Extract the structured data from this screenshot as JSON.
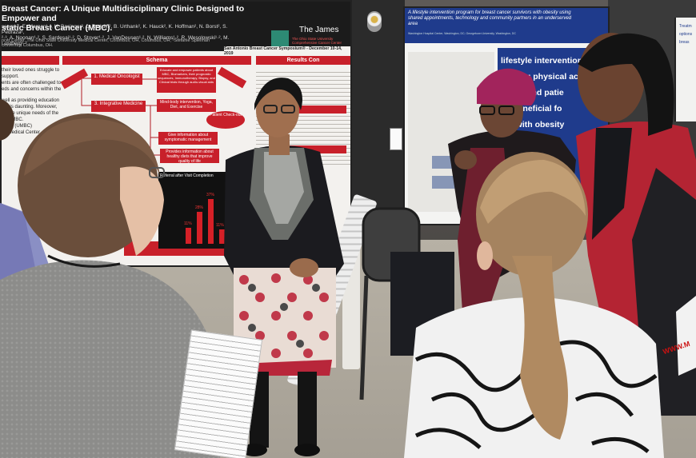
{
  "poster_left": {
    "title": "Breast Cancer: A Unique Multidisciplinary Clinic Designed to Empower and … static Breast Cancer (MBC).",
    "title_line1": "Breast Cancer: A Unique Multidisciplinary Clinic Designed to Empower and",
    "title_line2": "static Breast Cancer (MBC).",
    "authors_line1": "ssem¹·², E. Morgan¹·², H. Basinger², L. Radcliff², B. Urthank², K. Hauck², K. Hoffman², N. Borst², S. Pedraza²,",
    "authors_line2": "²·³, A. Noonan¹·², S. Sardesai¹·², D. Stover¹·², J. VanDeusen¹·², N. Williams¹·², R. Wesolowski¹·², M. Lustberg¹·²",
    "institution": "ncer Center, The Ohio State University Medical Center, Columbus, OH, Columbus, OH; ²Stefanie Spielman",
    "institution2": "University, Columbus, OH.",
    "brand": "The James",
    "brand_sub": "The Ohio State University Comprehensive Cancer Center",
    "symposium": "San Antonio Breast Cancer Symposium® - December 10-14, 2019",
    "sections": {
      "schema": "Schema",
      "results": "Results Con",
      "integrative": "3. Integrative Medicine",
      "oncologist": "1. Medical Oncologist",
      "referral_chart": "Referral after Visit Completion"
    },
    "boxes": {
      "educate": "Educate and empower patients about MBC, Biomarkers, their prognostic sequences, Immunotherapy, Biopsy, and Clinical trials through audio-visual aids",
      "mind_body": "Mind-body intervention, Yoga, Diet, and Exercise",
      "symptom": "Give information about symptomatic management",
      "stress": "Provides information about healthy diets that improve quality of life",
      "checkout": "Patient Check-out"
    },
    "left_text": [
      "their loved ones struggle to",
      "support.",
      "ents are often challenged to",
      "eds and concerns within the",
      "well as providing education",
      "lay, is daunting. Moreover,",
      "ed the unique needs of the",
      "with MBC.",
      "Clinic (UMBC)",
      "ity Medical Center"
    ],
    "chart_labels": [
      "11%",
      "28%",
      "37%",
      "11%"
    ]
  },
  "poster_center": {
    "title": "A lifestyle intervention program for breast cancer survivors with obesity using shared appointments, technology and community partners in an underserved area",
    "subtitle": "Washington Hospital Center, Washington, DC; Georgetown University, Washington, DC",
    "lines": [
      "lifestyle intervention",
      "reasing physical ac",
      "trition and patie",
      "be beneficial fo",
      "ers with obesity",
      "ns"
    ]
  },
  "poster_right": {
    "lines": [
      "Treatm",
      "options",
      "breas"
    ]
  },
  "bag": {
    "text": "WWW.M"
  },
  "palette": {
    "poster_red": "#c8202a",
    "poster_blue": "#1f3b8c",
    "floor": "#a59f94"
  }
}
